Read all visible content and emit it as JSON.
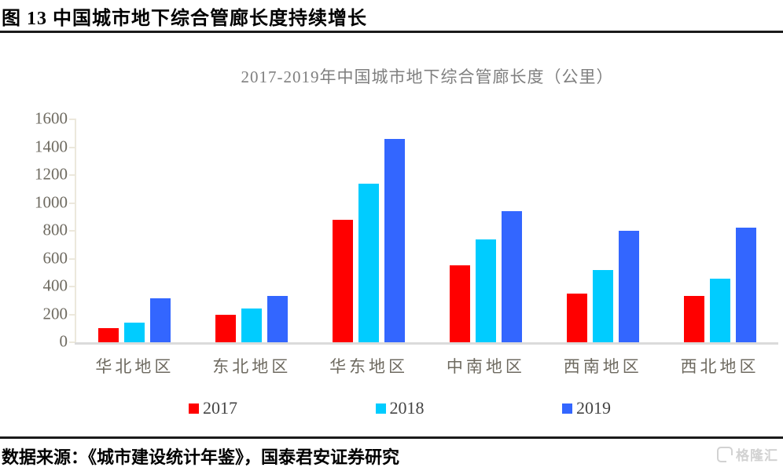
{
  "header": {
    "figure_title": "图 13  中国城市地下综合管廊长度持续增长"
  },
  "chart_data": {
    "type": "bar",
    "title": "2017-2019年中国城市地下综合管廊长度（公里）",
    "categories": [
      "华北地区",
      "东北地区",
      "华东地区",
      "中南地区",
      "西南地区",
      "西北地区"
    ],
    "series": [
      {
        "name": "2017",
        "color": "#FF0000",
        "values": [
          100,
          195,
          880,
          550,
          350,
          330
        ]
      },
      {
        "name": "2018",
        "color": "#00CCFF",
        "values": [
          140,
          245,
          1140,
          740,
          520,
          455
        ]
      },
      {
        "name": "2019",
        "color": "#3366FF",
        "values": [
          315,
          335,
          1460,
          940,
          800,
          820
        ]
      }
    ],
    "xlabel": "",
    "ylabel": "",
    "ylim": [
      0,
      1600
    ],
    "yticks": [
      0,
      200,
      400,
      600,
      800,
      1000,
      1200,
      1400,
      1600
    ],
    "grid": false,
    "legend_position": "bottom",
    "axis_line_color": "#ECE8DC",
    "baseline_color": "#DBDBDB",
    "tick_label_color": "#6E6A60",
    "title_color": "#7F7F7F"
  },
  "footer": {
    "source": "数据来源：《城市建设统计年鉴》，国泰君安证券研究"
  },
  "watermark": {
    "text": "格隆汇"
  }
}
